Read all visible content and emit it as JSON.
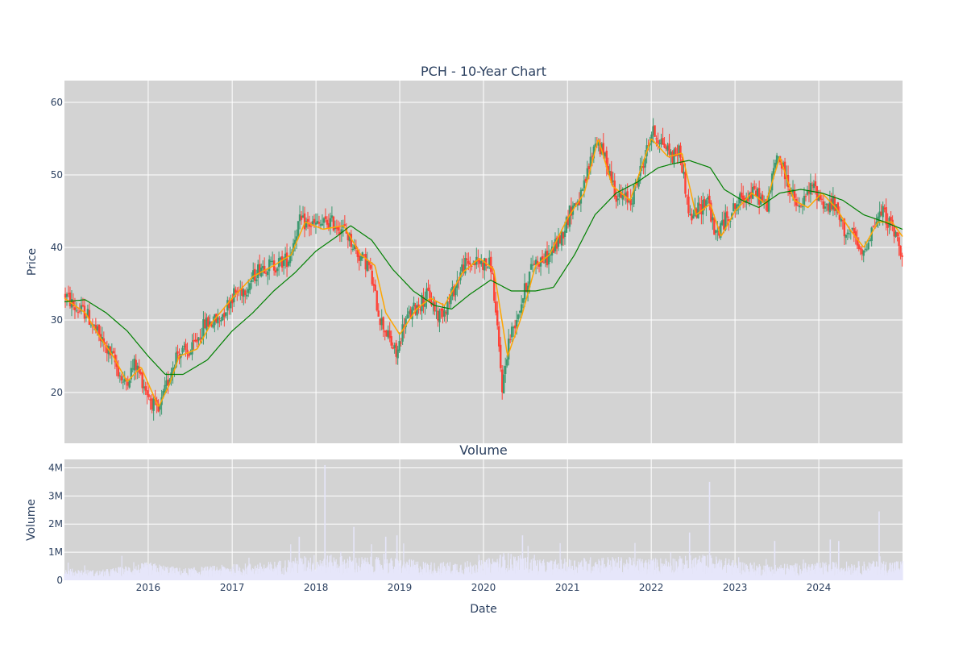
{
  "chart_data": [
    {
      "type": "candlestick",
      "title": "PCH - 10-Year Chart",
      "ylabel": "Price",
      "ylim": [
        13,
        63
      ],
      "yticks": [
        20,
        30,
        40,
        50,
        60
      ],
      "ytick_labels": [
        "20",
        "30",
        "40",
        "50",
        "60"
      ],
      "grid": true,
      "legend": "none",
      "colors": {
        "up": "#3d9970",
        "down": "#ff4136",
        "ma_short": "#ffa500",
        "ma_long": "#008000",
        "plot_bg": "#d3d3d3"
      },
      "price_anchors": [
        [
          "2015-01-01",
          33.5
        ],
        [
          "2015-02-15",
          31.5
        ],
        [
          "2015-04-01",
          31.0
        ],
        [
          "2015-06-01",
          27.5
        ],
        [
          "2015-08-01",
          24.5
        ],
        [
          "2015-09-15",
          21.0
        ],
        [
          "2015-11-01",
          24.0
        ],
        [
          "2016-01-01",
          19.5
        ],
        [
          "2016-02-10",
          17.0
        ],
        [
          "2016-04-01",
          22.5
        ],
        [
          "2016-05-01",
          25.5
        ],
        [
          "2016-07-01",
          25.5
        ],
        [
          "2016-09-01",
          29.5
        ],
        [
          "2016-11-01",
          30.0
        ],
        [
          "2017-01-01",
          33.5
        ],
        [
          "2017-03-01",
          34.5
        ],
        [
          "2017-05-01",
          37.5
        ],
        [
          "2017-07-01",
          37.5
        ],
        [
          "2017-09-01",
          38.5
        ],
        [
          "2017-10-15",
          43.5
        ],
        [
          "2018-01-01",
          43.0
        ],
        [
          "2018-03-01",
          43.5
        ],
        [
          "2018-05-01",
          42.5
        ],
        [
          "2018-07-01",
          39.0
        ],
        [
          "2018-08-15",
          37.5
        ],
        [
          "2018-10-01",
          30.5
        ],
        [
          "2018-12-15",
          25.0
        ],
        [
          "2019-01-15",
          29.5
        ],
        [
          "2019-03-01",
          31.5
        ],
        [
          "2019-05-01",
          33.5
        ],
        [
          "2019-06-15",
          30.5
        ],
        [
          "2019-08-01",
          32.5
        ],
        [
          "2019-10-01",
          37.5
        ],
        [
          "2019-12-01",
          38.0
        ],
        [
          "2020-02-01",
          37.5
        ],
        [
          "2020-03-20",
          20.5
        ],
        [
          "2020-04-15",
          27.0
        ],
        [
          "2020-06-01",
          31.5
        ],
        [
          "2020-08-01",
          38.0
        ],
        [
          "2020-10-01",
          38.5
        ],
        [
          "2020-12-01",
          41.5
        ],
        [
          "2021-01-15",
          45.5
        ],
        [
          "2021-03-01",
          47.0
        ],
        [
          "2021-05-01",
          55.0
        ],
        [
          "2021-06-15",
          52.0
        ],
        [
          "2021-08-01",
          47.0
        ],
        [
          "2021-10-01",
          46.5
        ],
        [
          "2021-12-01",
          52.5
        ],
        [
          "2022-01-01",
          56.0
        ],
        [
          "2022-02-15",
          54.5
        ],
        [
          "2022-04-01",
          52.5
        ],
        [
          "2022-05-01",
          53.5
        ],
        [
          "2022-06-15",
          44.0
        ],
        [
          "2022-08-01",
          45.5
        ],
        [
          "2022-09-01",
          47.0
        ],
        [
          "2022-10-01",
          41.5
        ],
        [
          "2022-12-01",
          44.5
        ],
        [
          "2023-02-01",
          47.0
        ],
        [
          "2023-04-01",
          47.5
        ],
        [
          "2023-05-15",
          45.5
        ],
        [
          "2023-07-01",
          53.0
        ],
        [
          "2023-08-15",
          49.0
        ],
        [
          "2023-10-01",
          45.0
        ],
        [
          "2023-12-01",
          48.5
        ],
        [
          "2024-02-01",
          45.5
        ],
        [
          "2024-03-01",
          46.0
        ],
        [
          "2024-04-15",
          42.5
        ],
        [
          "2024-06-01",
          41.5
        ],
        [
          "2024-07-01",
          38.5
        ],
        [
          "2024-08-15",
          42.5
        ],
        [
          "2024-10-01",
          45.0
        ],
        [
          "2024-11-15",
          42.5
        ],
        [
          "2024-12-31",
          39.0
        ]
      ],
      "ma_short_anchors": [
        [
          "2015-01-01",
          33.0
        ],
        [
          "2015-04-01",
          31.0
        ],
        [
          "2015-06-01",
          27.8
        ],
        [
          "2015-08-01",
          25.0
        ],
        [
          "2015-10-01",
          21.5
        ],
        [
          "2015-12-01",
          23.5
        ],
        [
          "2016-02-15",
          18.0
        ],
        [
          "2016-04-01",
          21.0
        ],
        [
          "2016-05-15",
          25.0
        ],
        [
          "2016-08-01",
          26.0
        ],
        [
          "2016-10-01",
          29.5
        ],
        [
          "2017-01-01",
          33.0
        ],
        [
          "2017-04-01",
          36.0
        ],
        [
          "2017-07-01",
          37.5
        ],
        [
          "2017-09-15",
          39.0
        ],
        [
          "2017-11-15",
          43.5
        ],
        [
          "2018-02-01",
          42.5
        ],
        [
          "2018-05-01",
          43.0
        ],
        [
          "2018-07-15",
          39.0
        ],
        [
          "2018-09-15",
          37.5
        ],
        [
          "2018-11-01",
          31.0
        ],
        [
          "2019-01-01",
          28.0
        ],
        [
          "2019-03-15",
          31.5
        ],
        [
          "2019-05-15",
          33.0
        ],
        [
          "2019-07-15",
          32.0
        ],
        [
          "2019-10-01",
          36.5
        ],
        [
          "2019-12-15",
          38.5
        ],
        [
          "2020-02-15",
          37.0
        ],
        [
          "2020-04-15",
          25.0
        ],
        [
          "2020-06-15",
          30.5
        ],
        [
          "2020-08-15",
          37.5
        ],
        [
          "2020-10-15",
          39.0
        ],
        [
          "2021-01-01",
          44.0
        ],
        [
          "2021-03-15",
          47.5
        ],
        [
          "2021-05-15",
          55.0
        ],
        [
          "2021-07-15",
          48.5
        ],
        [
          "2021-10-01",
          46.5
        ],
        [
          "2022-01-01",
          55.0
        ],
        [
          "2022-03-15",
          52.5
        ],
        [
          "2022-05-15",
          53.0
        ],
        [
          "2022-07-15",
          44.5
        ],
        [
          "2022-09-15",
          46.0
        ],
        [
          "2022-11-01",
          41.5
        ],
        [
          "2023-01-01",
          45.0
        ],
        [
          "2023-03-15",
          47.5
        ],
        [
          "2023-05-15",
          46.0
        ],
        [
          "2023-07-15",
          52.5
        ],
        [
          "2023-09-15",
          46.5
        ],
        [
          "2023-11-15",
          45.5
        ],
        [
          "2024-01-15",
          47.5
        ],
        [
          "2024-03-15",
          45.5
        ],
        [
          "2024-05-15",
          42.5
        ],
        [
          "2024-07-15",
          40.0
        ],
        [
          "2024-09-15",
          43.5
        ],
        [
          "2024-11-15",
          43.5
        ],
        [
          "2024-12-31",
          41.5
        ]
      ],
      "ma_long_anchors": [
        [
          "2015-01-01",
          32.5
        ],
        [
          "2015-04-01",
          32.8
        ],
        [
          "2015-07-01",
          31.0
        ],
        [
          "2015-10-01",
          28.5
        ],
        [
          "2016-01-01",
          25.0
        ],
        [
          "2016-03-15",
          22.5
        ],
        [
          "2016-06-01",
          22.5
        ],
        [
          "2016-09-15",
          24.5
        ],
        [
          "2017-01-01",
          28.5
        ],
        [
          "2017-04-01",
          31.0
        ],
        [
          "2017-07-01",
          34.0
        ],
        [
          "2017-10-01",
          36.5
        ],
        [
          "2018-01-01",
          39.5
        ],
        [
          "2018-04-01",
          41.5
        ],
        [
          "2018-06-01",
          43.0
        ],
        [
          "2018-09-01",
          41.0
        ],
        [
          "2018-12-01",
          37.0
        ],
        [
          "2019-03-01",
          34.0
        ],
        [
          "2019-06-01",
          32.0
        ],
        [
          "2019-08-15",
          31.5
        ],
        [
          "2019-11-01",
          33.5
        ],
        [
          "2020-02-01",
          35.5
        ],
        [
          "2020-05-01",
          34.0
        ],
        [
          "2020-08-15",
          34.0
        ],
        [
          "2020-11-01",
          34.5
        ],
        [
          "2021-02-01",
          39.0
        ],
        [
          "2021-05-01",
          44.5
        ],
        [
          "2021-08-01",
          47.5
        ],
        [
          "2021-11-01",
          49.0
        ],
        [
          "2022-02-01",
          51.0
        ],
        [
          "2022-04-01",
          51.5
        ],
        [
          "2022-06-15",
          52.0
        ],
        [
          "2022-09-15",
          51.0
        ],
        [
          "2022-11-15",
          48.0
        ],
        [
          "2023-02-01",
          46.5
        ],
        [
          "2023-04-15",
          45.5
        ],
        [
          "2023-07-15",
          47.5
        ],
        [
          "2023-10-15",
          48.0
        ],
        [
          "2024-01-15",
          47.5
        ],
        [
          "2024-04-15",
          46.5
        ],
        [
          "2024-07-15",
          44.5
        ],
        [
          "2024-10-15",
          43.5
        ],
        [
          "2024-12-31",
          42.5
        ]
      ]
    },
    {
      "type": "bar",
      "title": "Volume",
      "xlabel": "Date",
      "ylabel": "Volume",
      "ylim": [
        0,
        4300000
      ],
      "yticks": [
        0,
        1000000,
        2000000,
        3000000,
        4000000
      ],
      "ytick_labels": [
        "0",
        "1M",
        "2M",
        "3M",
        "4M"
      ],
      "xtick_labels": [
        "2016",
        "2017",
        "2018",
        "2019",
        "2020",
        "2021",
        "2022",
        "2023",
        "2024"
      ],
      "xtick_dates": [
        "2016-01-01",
        "2017-01-01",
        "2018-01-01",
        "2019-01-01",
        "2020-01-01",
        "2021-01-01",
        "2022-01-01",
        "2023-01-01",
        "2024-01-01"
      ],
      "x_range": [
        "2015-01-01",
        "2024-12-31"
      ],
      "grid": true,
      "colors": {
        "bar": "#e6e6fa",
        "plot_bg": "#d3d3d3"
      },
      "volume_anchors": [
        [
          "2015-01-01",
          300000
        ],
        [
          "2015-06-01",
          250000
        ],
        [
          "2016-01-01",
          450000
        ],
        [
          "2016-06-01",
          300000
        ],
        [
          "2017-01-01",
          400000
        ],
        [
          "2017-06-01",
          450000
        ],
        [
          "2018-01-01",
          650000
        ],
        [
          "2018-06-01",
          600000
        ],
        [
          "2019-01-01",
          550000
        ],
        [
          "2019-06-01",
          450000
        ],
        [
          "2020-01-01",
          500000
        ],
        [
          "2020-04-01",
          700000
        ],
        [
          "2020-10-01",
          500000
        ],
        [
          "2021-06-01",
          600000
        ],
        [
          "2022-01-01",
          550000
        ],
        [
          "2022-09-01",
          650000
        ],
        [
          "2023-01-01",
          500000
        ],
        [
          "2023-06-01",
          400000
        ],
        [
          "2024-01-01",
          450000
        ],
        [
          "2024-12-31",
          500000
        ]
      ],
      "volume_spikes": [
        [
          "2018-02-09",
          4100000
        ],
        [
          "2022-09-12",
          3500000
        ],
        [
          "2024-09-20",
          2450000
        ],
        [
          "2018-06-15",
          1900000
        ],
        [
          "2018-11-01",
          1550000
        ],
        [
          "2018-12-20",
          1600000
        ],
        [
          "2017-10-20",
          1550000
        ],
        [
          "2020-06-19",
          1600000
        ],
        [
          "2022-06-17",
          1700000
        ],
        [
          "2023-06-23",
          1400000
        ],
        [
          "2024-02-20",
          1450000
        ],
        [
          "2024-03-28",
          1400000
        ]
      ]
    }
  ]
}
